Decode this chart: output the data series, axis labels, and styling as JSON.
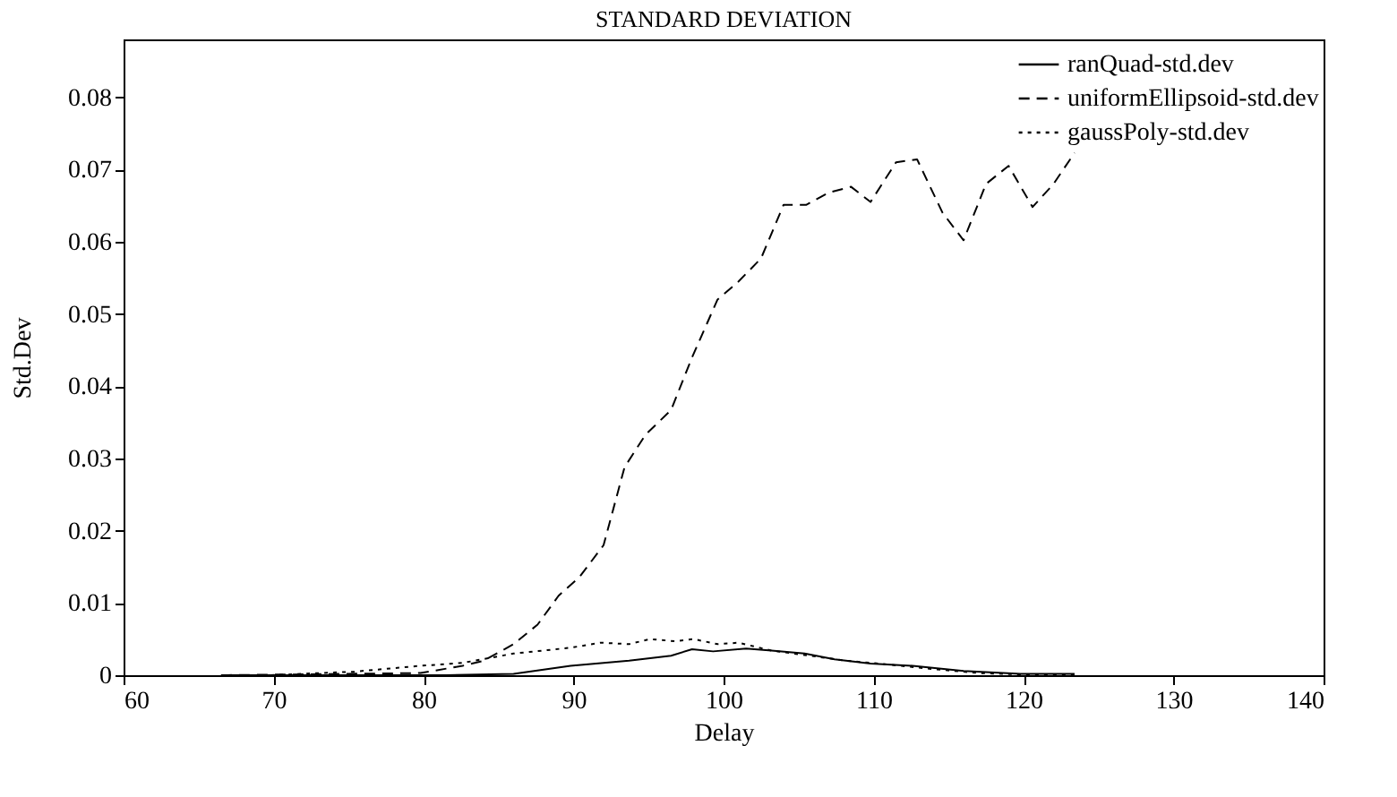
{
  "chart_data": {
    "type": "line",
    "title": "STANDARD DEVIATION",
    "xlabel": "Delay",
    "ylabel": "Std.Dev",
    "xlim": [
      60,
      140
    ],
    "xticks": [
      60,
      70,
      80,
      90,
      100,
      110,
      120,
      130,
      140
    ],
    "ylim": [
      0,
      0.088
    ],
    "yticks": [
      0,
      0.01,
      0.02,
      0.03,
      0.04,
      0.05,
      0.06,
      0.07,
      0.08
    ],
    "grid": false,
    "legend": "top right",
    "marker": "none",
    "series": [
      {
        "name": "ranQuad-std.dev",
        "color": "#000000",
        "line_style": "solid",
        "x": [
          66.5,
          81.5,
          86,
          89.8,
          93.7,
          96.5,
          97.9,
          99.3,
          101.5,
          103.2,
          105.4,
          107.4,
          109.8,
          112.6,
          116,
          119.8,
          123.4
        ],
        "values": [
          0,
          0,
          0.0002,
          0.0013,
          0.002,
          0.0027,
          0.0036,
          0.0033,
          0.0037,
          0.0034,
          0.003,
          0.0022,
          0.0016,
          0.0013,
          0.0006,
          0.0002,
          0.0002
        ]
      },
      {
        "name": "uniformEllipsoid-std.dev",
        "color": "#000000",
        "line_style": "dashed",
        "x": [
          66.5,
          79.8,
          82.6,
          84,
          86,
          87.6,
          89,
          90.4,
          92,
          93.4,
          94.8,
          96.5,
          97.9,
          99.6,
          101,
          102.5,
          104,
          105.5,
          107,
          108.5,
          109.8,
          111.5,
          112.9,
          114.6,
          116,
          117.5,
          119,
          120.6,
          122,
          123.4
        ],
        "values": [
          0,
          0.0003,
          0.0013,
          0.002,
          0.0043,
          0.007,
          0.011,
          0.0136,
          0.018,
          0.0288,
          0.0333,
          0.0367,
          0.044,
          0.052,
          0.0545,
          0.0577,
          0.0651,
          0.0651,
          0.0668,
          0.0676,
          0.0655,
          0.071,
          0.0714,
          0.064,
          0.0602,
          0.068,
          0.0705,
          0.0648,
          0.068,
          0.0723
        ]
      },
      {
        "name": "gaussPoly-std.dev",
        "color": "#000000",
        "line_style": "dotted",
        "x": [
          69.8,
          75.4,
          79.8,
          82.6,
          86,
          89.8,
          91.8,
          93.7,
          95.1,
          96.8,
          98,
          99.6,
          101,
          103.2,
          105.4,
          108.2,
          110.4,
          113.7,
          117,
          119.8,
          123.4
        ],
        "values": [
          0,
          0.0005,
          0.0013,
          0.0017,
          0.003,
          0.0038,
          0.0045,
          0.0043,
          0.005,
          0.0047,
          0.005,
          0.0043,
          0.0045,
          0.0034,
          0.0028,
          0.002,
          0.0016,
          0.0009,
          0.0003,
          0.0001,
          0
        ]
      }
    ]
  }
}
